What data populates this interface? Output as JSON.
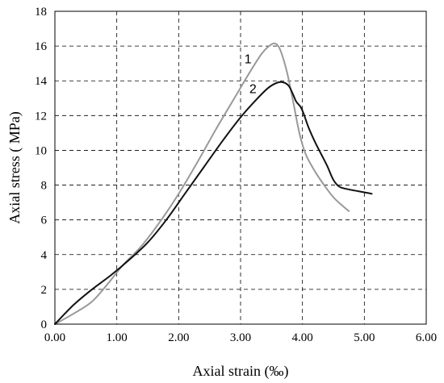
{
  "chart_data": {
    "type": "line",
    "title": "",
    "xlabel": "Axial strain (‰)",
    "ylabel": "Axial stress ( MPa)",
    "xlim": [
      0,
      6
    ],
    "ylim": [
      0,
      18
    ],
    "x_ticks": [
      0,
      1,
      2,
      3,
      4,
      5,
      6
    ],
    "x_tick_labels": [
      "0.00",
      "1.00",
      "2.00",
      "3.00",
      "4.00",
      "5.00",
      "6.00"
    ],
    "y_ticks": [
      0,
      2,
      4,
      6,
      8,
      10,
      12,
      14,
      16,
      18
    ],
    "y_tick_labels": [
      "0",
      "2",
      "4",
      "6",
      "8",
      "10",
      "12",
      "14",
      "16",
      "18"
    ],
    "grid": true,
    "grid_style": "dashed",
    "series": [
      {
        "name": "1",
        "color": "#999999",
        "x": [
          0.0,
          0.3,
          0.6,
          0.85,
          1.1,
          1.4,
          1.7,
          2.0,
          2.3,
          2.6,
          2.9,
          3.15,
          3.35,
          3.5,
          3.58,
          3.65,
          3.75,
          3.85,
          3.95,
          4.05,
          4.2,
          4.35,
          4.5,
          4.65,
          4.75
        ],
        "y": [
          0.0,
          0.6,
          1.3,
          2.3,
          3.4,
          4.5,
          5.9,
          7.5,
          9.3,
          11.2,
          13.0,
          14.5,
          15.6,
          16.1,
          16.1,
          15.7,
          14.5,
          12.8,
          11.0,
          9.8,
          8.8,
          8.0,
          7.3,
          6.8,
          6.5
        ]
      },
      {
        "name": "2",
        "color": "#111111",
        "x": [
          0.0,
          0.3,
          0.6,
          0.9,
          1.2,
          1.5,
          1.8,
          2.1,
          2.4,
          2.7,
          3.0,
          3.25,
          3.45,
          3.6,
          3.7,
          3.78,
          3.85,
          3.9,
          3.97,
          4.02,
          4.1,
          4.2,
          4.3,
          4.4,
          4.5,
          4.6,
          4.75,
          4.9,
          5.05,
          5.12
        ],
        "y": [
          0.0,
          1.1,
          2.0,
          2.8,
          3.7,
          4.7,
          6.0,
          7.5,
          9.0,
          10.5,
          11.9,
          12.9,
          13.6,
          13.9,
          13.9,
          13.7,
          13.2,
          12.8,
          12.5,
          12.1,
          11.3,
          10.5,
          9.8,
          9.1,
          8.3,
          7.9,
          7.75,
          7.65,
          7.55,
          7.5
        ]
      }
    ],
    "annotations": [
      {
        "text": "1",
        "x": 3.12,
        "y": 15.0
      },
      {
        "text": "2",
        "x": 3.2,
        "y": 13.3
      }
    ]
  }
}
